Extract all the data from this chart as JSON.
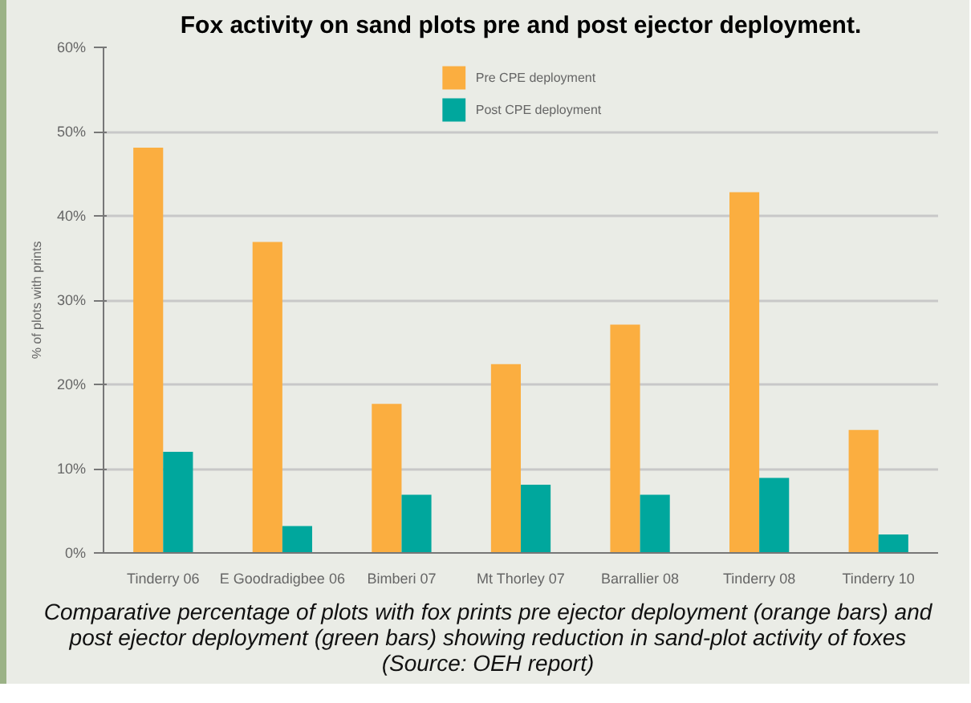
{
  "chart_data": {
    "type": "bar",
    "title": "Fox activity on sand plots pre and post ejector deployment.",
    "ylabel": "% of plots with prints",
    "categories": [
      "Tinderry 06",
      "E Goodradigbee 06",
      "Bimberi 07",
      "Mt Thorley 07",
      "Barrallier 08",
      "Tinderry 08",
      "Tinderry 10"
    ],
    "series": [
      {
        "name": "Pre CPE deployment",
        "color": "#fbae40",
        "values": [
          48.1,
          36.9,
          17.7,
          22.4,
          27.1,
          42.8,
          14.6
        ]
      },
      {
        "name": "Post CPE deployment",
        "color": "#00a79d",
        "values": [
          12.0,
          3.2,
          6.9,
          8.1,
          6.9,
          8.9,
          2.2
        ]
      }
    ],
    "ylim": [
      0,
      60
    ],
    "yticks": [
      {
        "value": 0,
        "label": "0%"
      },
      {
        "value": 10,
        "label": "10%"
      },
      {
        "value": 20,
        "label": "20%"
      },
      {
        "value": 30,
        "label": "30%"
      },
      {
        "value": 40,
        "label": "40%"
      },
      {
        "value": 50,
        "label": "50%"
      },
      {
        "value": 60,
        "label": "60%"
      }
    ],
    "grid": "y",
    "legend": "top",
    "annotations": [
      "Comparative percentage of plots with fox prints pre ejector deployment (orange bars) and post ejector deployment (green bars) showing reduction in sand-plot activity of foxes (Source: OEH report)"
    ]
  }
}
